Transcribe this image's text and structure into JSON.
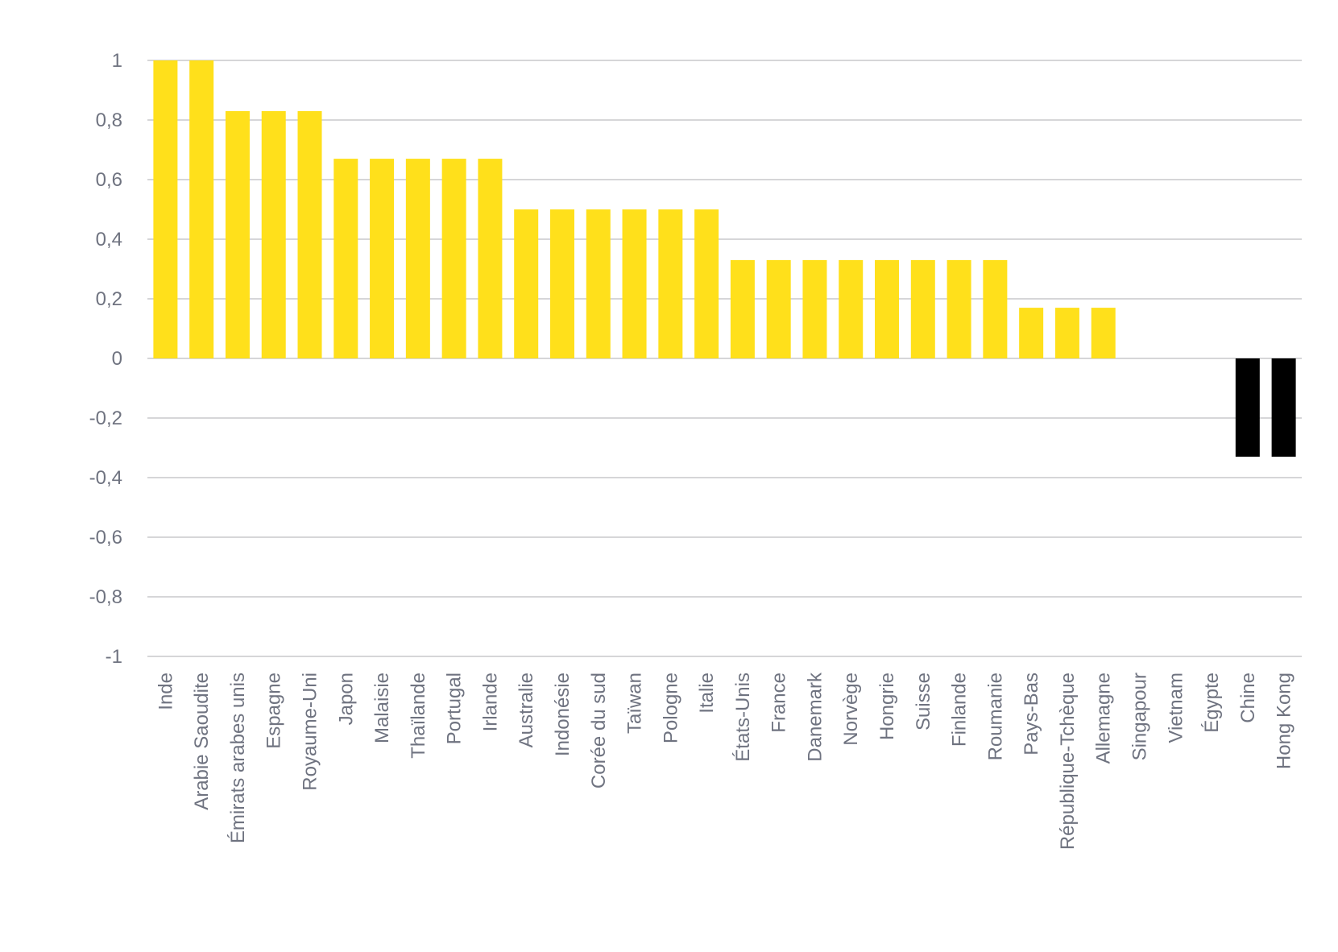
{
  "chart_data": {
    "type": "bar",
    "title": "",
    "xlabel": "",
    "ylabel": "",
    "ylim": [
      -1,
      1
    ],
    "yticks": [
      1,
      0.8,
      0.6,
      0.4,
      0.2,
      0,
      -0.2,
      -0.4,
      -0.6,
      -0.8,
      -1
    ],
    "ytick_labels": [
      "1",
      "0,8",
      "0,6",
      "0,4",
      "0,2",
      "0",
      "-0,2",
      "-0,4",
      "-0,6",
      "-0,8",
      "-1"
    ],
    "grid": true,
    "legend": "none",
    "colors": {
      "positive": "#FFE01B",
      "negative": "#000000",
      "grid": "#C9C9CC",
      "text": "#6F7380"
    },
    "categories": [
      "Inde",
      "Arabie Saoudite",
      "Émirats arabes unis",
      "Espagne",
      "Royaume-Uni",
      "Japon",
      "Malaisie",
      "Thaïlande",
      "Portugal",
      "Irlande",
      "Australie",
      "Indonésie",
      "Corée du sud",
      "Taïwan",
      "Pologne",
      "Italie",
      "États-Unis",
      "France",
      "Danemark",
      "Norvège",
      "Hongrie",
      "Suisse",
      "Finlande",
      "Roumanie",
      "Pays-Bas",
      "République-Tchèque",
      "Allemagne",
      "Singapour",
      "Vietnam",
      "Égypte",
      "Chine",
      "Hong Kong"
    ],
    "values": [
      1,
      1,
      0.83,
      0.83,
      0.83,
      0.67,
      0.67,
      0.67,
      0.67,
      0.67,
      0.5,
      0.5,
      0.5,
      0.5,
      0.5,
      0.5,
      0.33,
      0.33,
      0.33,
      0.33,
      0.33,
      0.33,
      0.33,
      0.33,
      0.17,
      0.17,
      0.17,
      0,
      0,
      0,
      -0.33,
      -0.33
    ]
  }
}
